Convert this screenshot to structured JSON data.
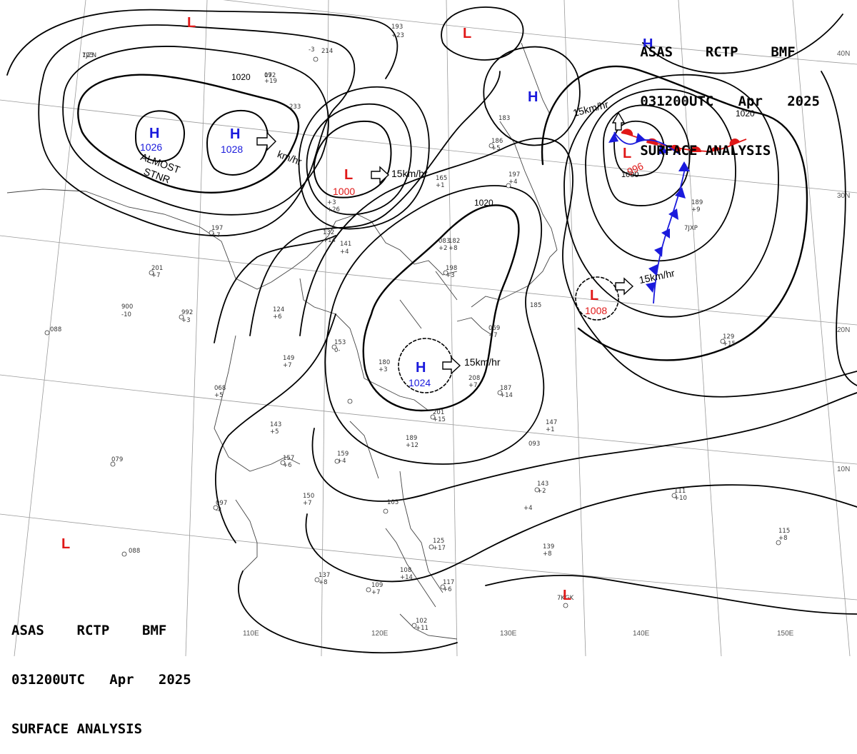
{
  "header": {
    "line1": "ASAS    RCTP    BMF",
    "line2": "031200UTC   Apr   2025",
    "line3": "SURFACE ANALYSIS"
  },
  "colors": {
    "high": "#1a1adc",
    "low": "#e01818",
    "warm_front": "#e01818",
    "cold_front": "#1a1adc",
    "isobar": "#000000"
  },
  "lat_labels": [
    "40N",
    "30N",
    "20N",
    "10N"
  ],
  "lon_labels": [
    "110E",
    "120E",
    "130E",
    "140E",
    "150E"
  ],
  "isobar_labels": [
    "1020",
    "1020",
    "1020"
  ],
  "pressure_systems": [
    {
      "type": "H",
      "value": "1026"
    },
    {
      "type": "H",
      "value": "1028"
    },
    {
      "type": "L",
      "value": "1000"
    },
    {
      "type": "H",
      "value": "1024"
    },
    {
      "type": "L",
      "value": "996"
    },
    {
      "type": "L",
      "value": "1008"
    },
    {
      "type": "H",
      "value": ""
    },
    {
      "type": "H",
      "value": ""
    },
    {
      "type": "L",
      "value": ""
    },
    {
      "type": "L",
      "value": ""
    },
    {
      "type": "L",
      "value": ""
    },
    {
      "type": "L",
      "value": ""
    }
  ],
  "motion_labels": [
    "km/hr",
    "15km/hr",
    "15km/hr",
    "15km/hr",
    "15km/hr"
  ],
  "annotations": {
    "almost": "ALMOST",
    "stnr": "STNR",
    "inner_isobar": "1000"
  },
  "station_values": [
    "123",
    "172",
    "214",
    "233",
    "193",
    "+23",
    "+19",
    "-3",
    "197",
    "+7",
    "201",
    "+7",
    "900",
    "-10",
    "992",
    "+3",
    "132",
    "+14",
    "141",
    "+4",
    "124",
    "+6",
    "153",
    "0-",
    "149",
    "+7",
    "068",
    "+5",
    "143",
    "+5",
    "159",
    "+4",
    "157",
    "+6",
    "150",
    "+7",
    "097",
    "-4",
    "088",
    "079",
    "088",
    "137",
    "+8",
    "109",
    "+7",
    "108",
    "+14",
    "125",
    "+17",
    "117",
    "+6",
    "102",
    "+11",
    "105",
    "183",
    "186",
    "+5",
    "165",
    "+1",
    "197",
    "+4",
    "182",
    "+8",
    "198",
    "+3",
    "180",
    "+3",
    "208",
    "+7",
    "187",
    "+14",
    "201",
    "+15",
    "189",
    "+12",
    "147",
    "+1",
    "143",
    "+2",
    "139",
    "+8",
    "115",
    "+8",
    "111",
    "+10",
    "129",
    "+15",
    "189",
    "+9",
    "185",
    "+3",
    "+26",
    "083",
    "+2",
    "069",
    "+7",
    "093",
    "+4",
    "7JXP",
    "7KGK",
    "7JZN",
    "09"
  ]
}
